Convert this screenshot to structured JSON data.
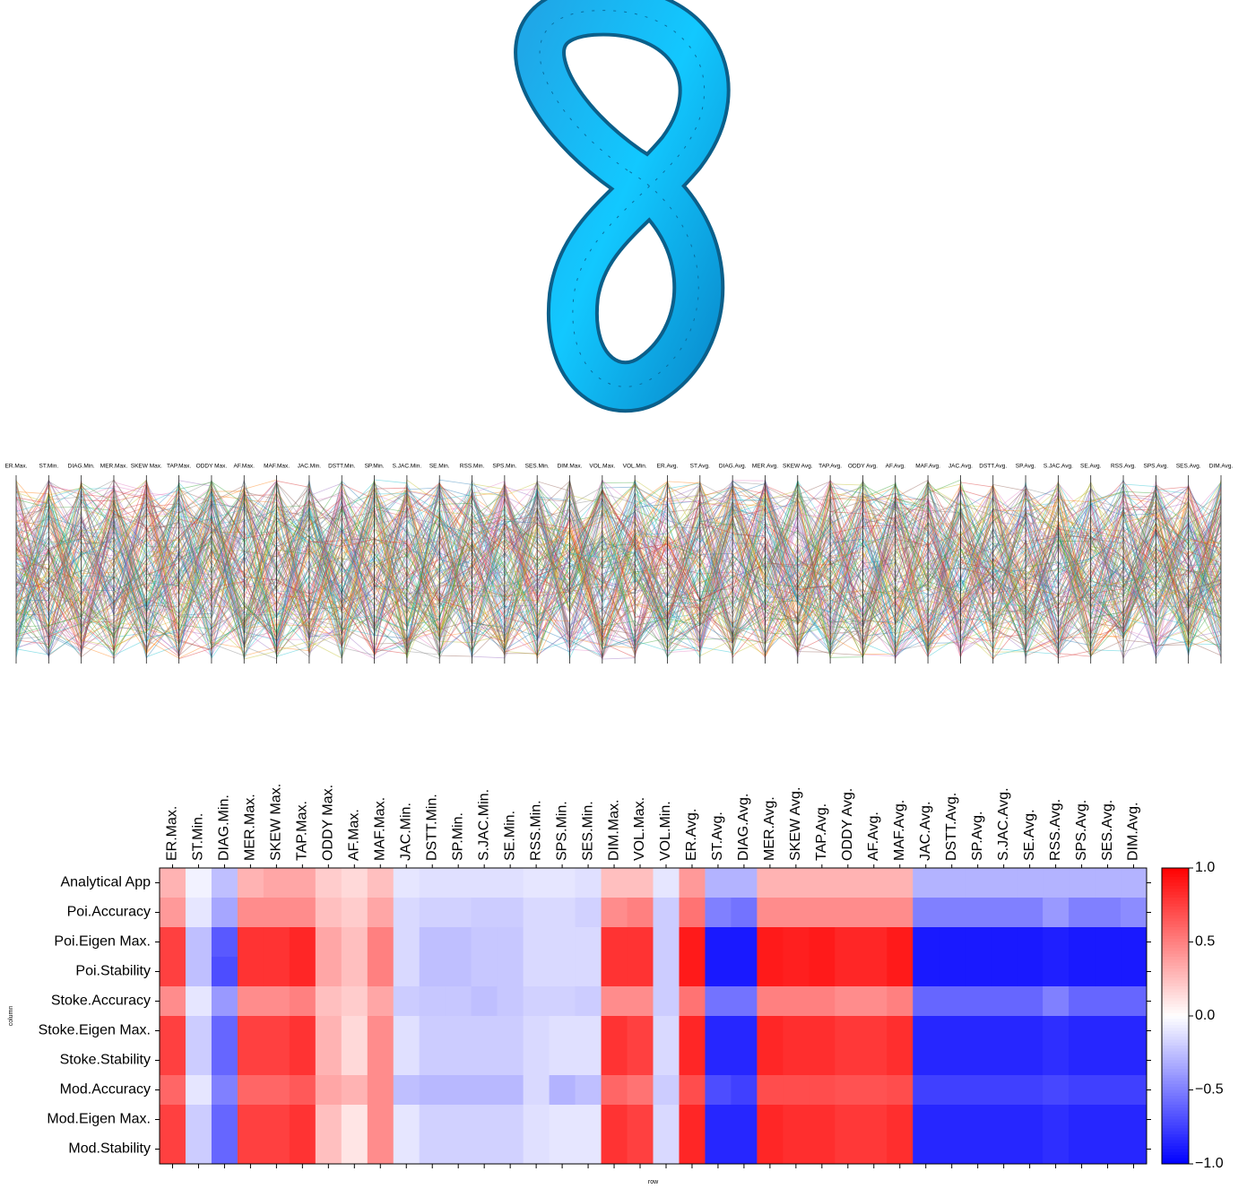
{
  "parallel": {
    "axes": [
      "ER.Max.",
      "ST.Min.",
      "DIAG.Min.",
      "MER.Max.",
      "SKEW Max.",
      "TAP.Max.",
      "ODDY Max.",
      "AF.Max.",
      "MAF.Max.",
      "JAC.Min.",
      "DSTT.Min.",
      "SP.Min.",
      "S.JAC.Min.",
      "SE.Min.",
      "RSS.Min.",
      "SPS.Min.",
      "SES.Min.",
      "DIM.Max.",
      "VOL.Max.",
      "VOL.Min.",
      "ER.Avg.",
      "ST.Avg.",
      "DIAG.Avg.",
      "MER.Avg.",
      "SKEW Avg.",
      "TAP.Avg.",
      "ODDY Avg.",
      "AF.Avg.",
      "MAF.Avg.",
      "JAC.Avg.",
      "DSTT.Avg.",
      "SP.Avg.",
      "S.JAC.Avg.",
      "SE.Avg.",
      "RSS.Avg.",
      "SPS.Avg.",
      "SES.Avg.",
      "DIM.Avg."
    ]
  },
  "chart_data": {
    "type": "heatmap",
    "x_label": "row",
    "y_label": "column",
    "columns": [
      "ER.Max.",
      "ST.Min.",
      "DIAG.Min.",
      "MER.Max.",
      "SKEW Max.",
      "TAP.Max.",
      "ODDY Max.",
      "AF.Max.",
      "MAF.Max.",
      "JAC.Min.",
      "DSTT.Min.",
      "SP.Min.",
      "S.JAC.Min.",
      "SE.Min.",
      "RSS.Min.",
      "SPS.Min.",
      "SES.Min.",
      "DIM.Max.",
      "VOL.Max.",
      "VOL.Min.",
      "ER.Avg.",
      "ST.Avg.",
      "DIAG.Avg.",
      "MER.Avg.",
      "SKEW Avg.",
      "TAP.Avg.",
      "ODDY Avg.",
      "AF.Avg.",
      "MAF.Avg.",
      "JAC.Avg.",
      "DSTT.Avg.",
      "SP.Avg.",
      "S.JAC.Avg.",
      "SE.Avg.",
      "RSS.Avg.",
      "SPS.Avg.",
      "SES.Avg.",
      "DIM.Avg."
    ],
    "rows": [
      "Analytical App",
      "Poi.Accuracy",
      "Poi.Eigen Max.",
      "Poi.Stability",
      "Stoke.Accuracy",
      "Stoke.Eigen Max.",
      "Stoke.Stability",
      "Mod.Accuracy",
      "Mod.Eigen Max.",
      "Mod.Stability"
    ],
    "values": [
      [
        0.3,
        -0.05,
        -0.25,
        0.3,
        0.35,
        0.35,
        0.2,
        0.15,
        0.25,
        -0.1,
        -0.12,
        -0.12,
        -0.12,
        -0.12,
        -0.1,
        -0.1,
        -0.12,
        0.25,
        0.25,
        -0.1,
        0.4,
        -0.3,
        -0.3,
        0.3,
        0.3,
        0.3,
        0.3,
        0.3,
        0.3,
        -0.3,
        -0.3,
        -0.3,
        -0.3,
        -0.3,
        -0.3,
        -0.3,
        -0.3,
        -0.3
      ],
      [
        0.4,
        -0.1,
        -0.35,
        0.45,
        0.45,
        0.45,
        0.25,
        0.2,
        0.35,
        -0.15,
        -0.18,
        -0.18,
        -0.2,
        -0.2,
        -0.15,
        -0.15,
        -0.18,
        0.45,
        0.5,
        -0.2,
        0.55,
        -0.5,
        -0.55,
        0.45,
        0.45,
        0.45,
        0.45,
        0.45,
        0.45,
        -0.5,
        -0.5,
        -0.5,
        -0.5,
        -0.5,
        -0.4,
        -0.5,
        -0.5,
        -0.45
      ],
      [
        0.75,
        -0.25,
        -0.65,
        0.8,
        0.8,
        0.85,
        0.35,
        0.25,
        0.5,
        -0.15,
        -0.25,
        -0.25,
        -0.22,
        -0.22,
        -0.15,
        -0.15,
        -0.15,
        0.8,
        0.8,
        -0.2,
        0.9,
        -0.9,
        -0.9,
        0.9,
        0.88,
        0.9,
        0.85,
        0.85,
        0.9,
        -0.9,
        -0.9,
        -0.9,
        -0.9,
        -0.9,
        -0.88,
        -0.9,
        -0.9,
        -0.9
      ],
      [
        0.75,
        -0.25,
        -0.7,
        0.8,
        0.8,
        0.85,
        0.35,
        0.25,
        0.5,
        -0.15,
        -0.25,
        -0.25,
        -0.22,
        -0.22,
        -0.15,
        -0.15,
        -0.15,
        0.8,
        0.8,
        -0.2,
        0.9,
        -0.9,
        -0.9,
        0.9,
        0.88,
        0.9,
        0.85,
        0.85,
        0.9,
        -0.9,
        -0.9,
        -0.9,
        -0.9,
        -0.9,
        -0.88,
        -0.9,
        -0.9,
        -0.9
      ],
      [
        0.45,
        -0.1,
        -0.4,
        0.45,
        0.45,
        0.5,
        0.25,
        0.2,
        0.35,
        -0.2,
        -0.22,
        -0.22,
        -0.25,
        -0.22,
        -0.18,
        -0.18,
        -0.2,
        0.45,
        0.45,
        -0.2,
        0.55,
        -0.55,
        -0.55,
        0.5,
        0.5,
        0.5,
        0.45,
        0.45,
        0.5,
        -0.6,
        -0.6,
        -0.6,
        -0.6,
        -0.6,
        -0.5,
        -0.6,
        -0.6,
        -0.6
      ],
      [
        0.75,
        -0.2,
        -0.6,
        0.75,
        0.75,
        0.8,
        0.3,
        0.15,
        0.45,
        -0.12,
        -0.2,
        -0.2,
        -0.2,
        -0.2,
        -0.15,
        -0.12,
        -0.12,
        0.8,
        0.75,
        -0.15,
        0.85,
        -0.85,
        -0.85,
        0.85,
        0.82,
        0.82,
        0.78,
        0.78,
        0.82,
        -0.85,
        -0.85,
        -0.85,
        -0.85,
        -0.85,
        -0.82,
        -0.85,
        -0.85,
        -0.85
      ],
      [
        0.75,
        -0.2,
        -0.6,
        0.75,
        0.75,
        0.8,
        0.3,
        0.15,
        0.45,
        -0.12,
        -0.2,
        -0.2,
        -0.2,
        -0.2,
        -0.15,
        -0.12,
        -0.12,
        0.8,
        0.75,
        -0.15,
        0.85,
        -0.85,
        -0.85,
        0.85,
        0.82,
        0.82,
        0.78,
        0.78,
        0.82,
        -0.85,
        -0.85,
        -0.85,
        -0.85,
        -0.85,
        -0.82,
        -0.85,
        -0.85,
        -0.85
      ],
      [
        0.6,
        -0.1,
        -0.5,
        0.6,
        0.6,
        0.65,
        0.35,
        0.3,
        0.45,
        -0.25,
        -0.28,
        -0.28,
        -0.28,
        -0.28,
        -0.15,
        -0.3,
        -0.25,
        0.6,
        0.55,
        -0.2,
        0.7,
        -0.7,
        -0.75,
        0.7,
        0.7,
        0.7,
        0.68,
        0.68,
        0.7,
        -0.75,
        -0.75,
        -0.75,
        -0.75,
        -0.75,
        -0.72,
        -0.75,
        -0.75,
        -0.75
      ],
      [
        0.75,
        -0.2,
        -0.6,
        0.75,
        0.75,
        0.8,
        0.25,
        0.1,
        0.45,
        -0.1,
        -0.18,
        -0.18,
        -0.18,
        -0.18,
        -0.12,
        -0.1,
        -0.1,
        0.8,
        0.75,
        -0.15,
        0.85,
        -0.85,
        -0.85,
        0.85,
        0.82,
        0.82,
        0.78,
        0.78,
        0.82,
        -0.85,
        -0.85,
        -0.85,
        -0.85,
        -0.85,
        -0.82,
        -0.85,
        -0.85,
        -0.85
      ],
      [
        0.75,
        -0.2,
        -0.6,
        0.75,
        0.75,
        0.8,
        0.25,
        0.1,
        0.45,
        -0.1,
        -0.18,
        -0.18,
        -0.18,
        -0.18,
        -0.12,
        -0.1,
        -0.1,
        0.8,
        0.75,
        -0.15,
        0.85,
        -0.85,
        -0.85,
        0.85,
        0.82,
        0.82,
        0.78,
        0.78,
        0.82,
        -0.85,
        -0.85,
        -0.85,
        -0.85,
        -0.85,
        -0.82,
        -0.85,
        -0.85,
        -0.85
      ]
    ],
    "clim": [
      -1,
      1
    ],
    "cticks": [
      {
        "value": -1,
        "label": "−1.0"
      },
      {
        "value": -0.5,
        "label": "−0.5"
      },
      {
        "value": 0,
        "label": "0.0"
      },
      {
        "value": 0.5,
        "label": "0.5"
      },
      {
        "value": 1,
        "label": "1.0"
      }
    ],
    "colormap": "bwr"
  }
}
